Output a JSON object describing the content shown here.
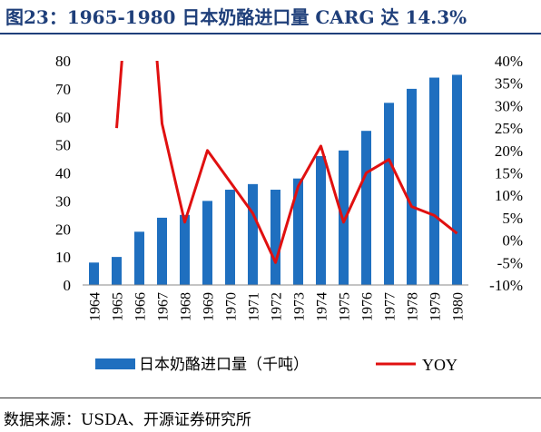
{
  "header": {
    "title": "图23：1965-1980 日本奶酪进口量 CARG 达 14.3%"
  },
  "footer": {
    "source": "数据来源：USDA、开源证券研究所"
  },
  "chart_data": {
    "type": "bar",
    "categories": [
      "1964",
      "1965",
      "1966",
      "1967",
      "1968",
      "1969",
      "1970",
      "1971",
      "1972",
      "1973",
      "1974",
      "1975",
      "1976",
      "1977",
      "1978",
      "1979",
      "1980"
    ],
    "series": [
      {
        "name": "日本奶酪进口量（千吨）",
        "type": "bar",
        "axis": "left",
        "color": "#1f6fbf",
        "values": [
          8,
          10,
          19,
          24,
          25,
          30,
          34,
          36,
          34,
          38,
          46,
          48,
          55,
          65,
          70,
          74,
          75
        ]
      },
      {
        "name": "YOY",
        "type": "line",
        "axis": "right",
        "color": "#e01010",
        "values": [
          null,
          25,
          90,
          26,
          4,
          20,
          13,
          6,
          -5,
          12,
          21,
          4,
          15,
          18,
          7.5,
          5.5,
          1.5
        ]
      }
    ],
    "y_left": {
      "min": 0,
      "max": 80,
      "step": 10,
      "ticks": [
        "0",
        "10",
        "20",
        "30",
        "40",
        "50",
        "60",
        "70",
        "80"
      ]
    },
    "y_right": {
      "min": -10,
      "max": 40,
      "step": 5,
      "ticks": [
        "-10%",
        "-5%",
        "0%",
        "5%",
        "10%",
        "15%",
        "20%",
        "25%",
        "30%",
        "35%",
        "40%"
      ]
    },
    "legend_position": "bottom",
    "grid": false
  }
}
